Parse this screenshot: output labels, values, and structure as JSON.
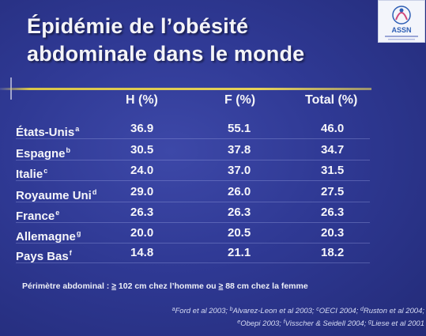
{
  "title": {
    "line1": "Épidémie de l’obésité",
    "line2": "abdominale dans le monde"
  },
  "logo": {
    "text": "ASSN",
    "colors": {
      "blue": "#2f5fb5",
      "pink": "#d0477a"
    }
  },
  "table": {
    "headers": [
      "H (%)",
      "F (%)",
      "Total (%)"
    ],
    "rows": [
      {
        "country": "États-Unis",
        "sup": "a",
        "h": "36.9",
        "f": "55.1",
        "total": "46.0"
      },
      {
        "country": "Espagne",
        "sup": "b",
        "h": "30.5",
        "f": "37.8",
        "total": "34.7"
      },
      {
        "country": "Italie",
        "sup": "c",
        "h": "24.0",
        "f": "37.0",
        "total": "31.5"
      },
      {
        "country": "Royaume Uni",
        "sup": "d",
        "h": "29.0",
        "f": "26.0",
        "total": "27.5"
      },
      {
        "country": "France",
        "sup": "e",
        "h": "26.3",
        "f": "26.3",
        "total": "26.3"
      },
      {
        "country": "Allemagne",
        "sup": "g",
        "h": "20.0",
        "f": "20.5",
        "total": "20.3"
      },
      {
        "country": "Pays Bas",
        "sup": "f",
        "h": "14.8",
        "f": "21.1",
        "total": "18.2"
      }
    ]
  },
  "note": {
    "prefix": "Périmètre abdominal : ",
    "ge1": "≥",
    "mid": " 102 cm chez l’homme ou ",
    "ge2": "≥",
    "suffix": " 88 cm chez la femme"
  },
  "references": {
    "line1": [
      {
        "sup": "a",
        "text": "Ford et al 2003; "
      },
      {
        "sup": "b",
        "text": "Alvarez-Leon et al 2003; "
      },
      {
        "sup": "c",
        "text": "OECI 2004; "
      },
      {
        "sup": "d",
        "text": "Ruston et al 2004;"
      }
    ],
    "line2": [
      {
        "sup": "e",
        "text": "Obepi 2003; "
      },
      {
        "sup": "f",
        "text": "Visscher  & Seidell 2004; "
      },
      {
        "sup": "g",
        "text": "Liese et al 2001"
      }
    ]
  }
}
